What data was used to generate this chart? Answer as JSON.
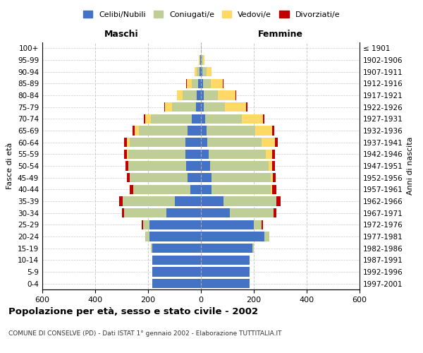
{
  "age_groups": [
    "100+",
    "95-99",
    "90-94",
    "85-89",
    "80-84",
    "75-79",
    "70-74",
    "65-69",
    "60-64",
    "55-59",
    "50-54",
    "45-49",
    "40-44",
    "35-39",
    "30-34",
    "25-29",
    "20-24",
    "15-19",
    "10-14",
    "5-9",
    "0-4"
  ],
  "birth_years": [
    "≤ 1901",
    "1902-1906",
    "1907-1911",
    "1912-1916",
    "1917-1921",
    "1922-1926",
    "1927-1931",
    "1932-1936",
    "1937-1941",
    "1942-1946",
    "1947-1951",
    "1952-1956",
    "1957-1961",
    "1962-1966",
    "1967-1971",
    "1972-1976",
    "1977-1981",
    "1982-1986",
    "1987-1991",
    "1992-1996",
    "1997-2001"
  ],
  "males": {
    "celibi": [
      0,
      2,
      5,
      10,
      15,
      20,
      35,
      50,
      60,
      60,
      55,
      50,
      40,
      100,
      130,
      195,
      195,
      185,
      185,
      185,
      185
    ],
    "coniugati": [
      0,
      3,
      12,
      25,
      55,
      90,
      155,
      185,
      210,
      215,
      220,
      220,
      215,
      195,
      160,
      25,
      15,
      5,
      0,
      0,
      0
    ],
    "vedovi": [
      0,
      2,
      8,
      18,
      20,
      25,
      20,
      15,
      10,
      5,
      0,
      0,
      0,
      0,
      0,
      0,
      0,
      0,
      0,
      0,
      0
    ],
    "divorziati": [
      0,
      0,
      0,
      2,
      2,
      5,
      5,
      8,
      10,
      10,
      10,
      10,
      15,
      15,
      10,
      5,
      0,
      0,
      0,
      0,
      0
    ]
  },
  "females": {
    "nubili": [
      0,
      2,
      5,
      8,
      10,
      10,
      15,
      20,
      25,
      30,
      35,
      40,
      40,
      85,
      110,
      200,
      240,
      195,
      185,
      185,
      185
    ],
    "coniugate": [
      0,
      5,
      15,
      30,
      55,
      80,
      140,
      185,
      205,
      215,
      220,
      225,
      225,
      200,
      165,
      30,
      18,
      5,
      0,
      0,
      0
    ],
    "vedove": [
      0,
      5,
      20,
      45,
      65,
      80,
      80,
      65,
      50,
      25,
      15,
      8,
      5,
      0,
      0,
      0,
      0,
      0,
      0,
      0,
      0
    ],
    "divorziate": [
      0,
      0,
      0,
      2,
      2,
      5,
      5,
      8,
      10,
      10,
      10,
      10,
      15,
      15,
      10,
      5,
      0,
      0,
      0,
      0,
      0
    ]
  },
  "colors": {
    "celibi_nubili": "#4472C4",
    "coniugati": "#BFCE96",
    "vedovi": "#FFD966",
    "divorziati": "#C00000"
  },
  "title": "Popolazione per età, sesso e stato civile - 2002",
  "subtitle": "COMUNE DI CONSELVE (PD) - Dati ISTAT 1° gennaio 2002 - Elaborazione TUTTITALIA.IT",
  "xlabel_left": "Maschi",
  "xlabel_right": "Femmine",
  "ylabel_left": "Fasce di età",
  "ylabel_right": "Anni di nascita",
  "xlim": 600,
  "legend_labels": [
    "Celibi/Nubili",
    "Coniugati/e",
    "Vedovi/e",
    "Divorziati/e"
  ]
}
